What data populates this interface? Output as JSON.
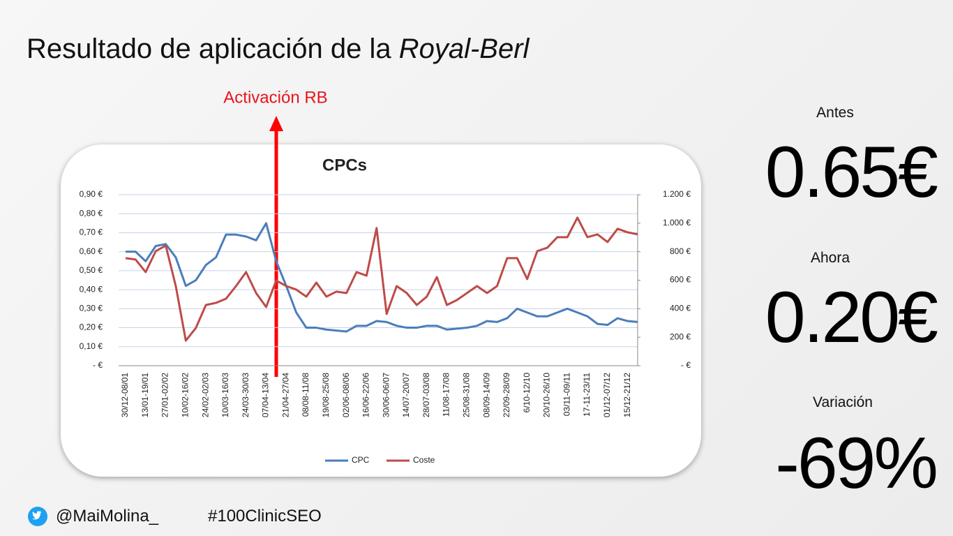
{
  "header": {
    "title": "Resultado de aplicación de la ",
    "title_italic": "Royal-Berl"
  },
  "chart_data": {
    "type": "line",
    "title": "CPCs",
    "annotation": "Activación RB",
    "categories": [
      "30/12-08/01",
      null,
      "13/01-19/01",
      null,
      "27/01-02/02",
      null,
      "10/02-16/02",
      null,
      "24/02-02/03",
      null,
      "10/03-16/03",
      null,
      "24/03-30/03",
      null,
      "07/04-13/04",
      null,
      "21/04-27/04",
      null,
      "08/08-11/08",
      null,
      "19/08-25/08",
      null,
      "02/06-08/06",
      null,
      "16/06-22/06",
      null,
      "30/06-06/07",
      null,
      "14/07-20/07",
      null,
      "28/07-03/08",
      null,
      "11/08-17/08",
      null,
      "25/08-31/08",
      null,
      "08/09-14/09",
      null,
      "22/09-28/09",
      null,
      "6/10-12/10",
      null,
      "20/10-26/10",
      null,
      "03/11-09/11",
      null,
      "17-11-23/11",
      null,
      "01/12-07/12",
      null,
      "15/12-21/12",
      null
    ],
    "series": [
      {
        "name": "CPC",
        "color": "#4a7ebb",
        "values": [
          0.6,
          0.6,
          0.55,
          0.63,
          0.64,
          0.57,
          0.42,
          0.45,
          0.53,
          0.57,
          0.69,
          0.69,
          0.68,
          0.66,
          0.75,
          0.55,
          0.42,
          0.28,
          0.2,
          0.2,
          0.19,
          0.185,
          0.18,
          0.21,
          0.21,
          0.235,
          0.23,
          0.21,
          0.2,
          0.2,
          0.21,
          0.21,
          0.19,
          0.195,
          0.2,
          0.21,
          0.235,
          0.23,
          0.25,
          0.3,
          0.28,
          0.26,
          0.26,
          0.28,
          0.3,
          0.28,
          0.26,
          0.22,
          0.215,
          0.25,
          0.235,
          0.23
        ]
      },
      {
        "name": "Coste",
        "color": "#be4b48",
        "axis": "y2",
        "values": [
          755,
          745,
          657,
          804,
          843,
          559,
          176,
          265,
          426,
          441,
          470,
          559,
          657,
          510,
          412,
          598,
          559,
          534,
          485,
          583,
          485,
          520,
          510,
          657,
          632,
          966,
          363,
          559,
          510,
          426,
          485,
          622,
          426,
          461,
          510,
          559,
          510,
          559,
          755,
          755,
          608,
          804,
          828,
          902,
          902,
          1039,
          902,
          922,
          868,
          961,
          936,
          922
        ]
      }
    ],
    "ylim": [
      0,
      0.9
    ],
    "yticks": [
      {
        "value": 0,
        "label": "-  €"
      },
      {
        "value": 0.1,
        "label": "0,10 €"
      },
      {
        "value": 0.2,
        "label": "0,20 €"
      },
      {
        "value": 0.3,
        "label": "0,30 €"
      },
      {
        "value": 0.4,
        "label": "0,40 €"
      },
      {
        "value": 0.5,
        "label": "0,50 €"
      },
      {
        "value": 0.6,
        "label": "0,60 €"
      },
      {
        "value": 0.7,
        "label": "0,70 €"
      },
      {
        "value": 0.8,
        "label": "0,80 €"
      },
      {
        "value": 0.9,
        "label": "0,90 €"
      }
    ],
    "y2lim": [
      0,
      1200
    ],
    "y2ticks": [
      {
        "value": 0,
        "label": "-  €"
      },
      {
        "value": 200,
        "label": "200 €"
      },
      {
        "value": 400,
        "label": "400 €"
      },
      {
        "value": 600,
        "label": "600 €"
      },
      {
        "value": 800,
        "label": "800 €"
      },
      {
        "value": 1000,
        "label": "1.000 €"
      },
      {
        "value": 1200,
        "label": "1.200 €"
      }
    ],
    "grid": true,
    "legend": "bottom"
  },
  "stats": [
    {
      "label": "Antes",
      "value": "0.65€"
    },
    {
      "label": "Ahora",
      "value": "0.20€"
    },
    {
      "label": "Variación",
      "value": "-69%"
    }
  ],
  "footer": {
    "handle": "@MaiMolina_",
    "hashtag": "#100ClinicSEO"
  }
}
